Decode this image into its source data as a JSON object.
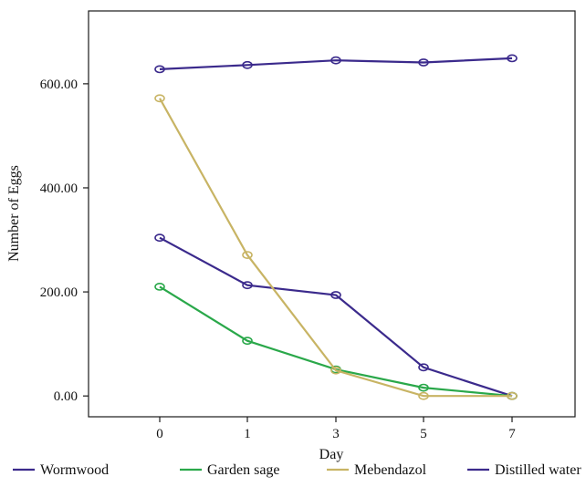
{
  "chart_data": {
    "type": "line",
    "title": "",
    "xlabel": "Day",
    "ylabel": "Number of Eggs",
    "categories": [
      "0",
      "1",
      "3",
      "5",
      "7"
    ],
    "y_ticks": [
      "0.00",
      "200.00",
      "400.00",
      "600.00"
    ],
    "ylim": [
      -40,
      740
    ],
    "grid": false,
    "legend": "bottom",
    "series": [
      {
        "name": "Wormwood",
        "color": "#3b2a8c",
        "values": [
          304,
          213,
          194,
          55,
          0
        ]
      },
      {
        "name": "Garden sage",
        "color": "#2aa84a",
        "values": [
          210,
          106,
          51,
          16,
          0
        ]
      },
      {
        "name": "Mebendazol",
        "color": "#c8b464",
        "values": [
          572,
          271,
          49,
          0,
          0
        ]
      },
      {
        "name": "Distilled water",
        "color": "#3b2a8c",
        "values": [
          628,
          636,
          645,
          641,
          649
        ]
      }
    ]
  }
}
